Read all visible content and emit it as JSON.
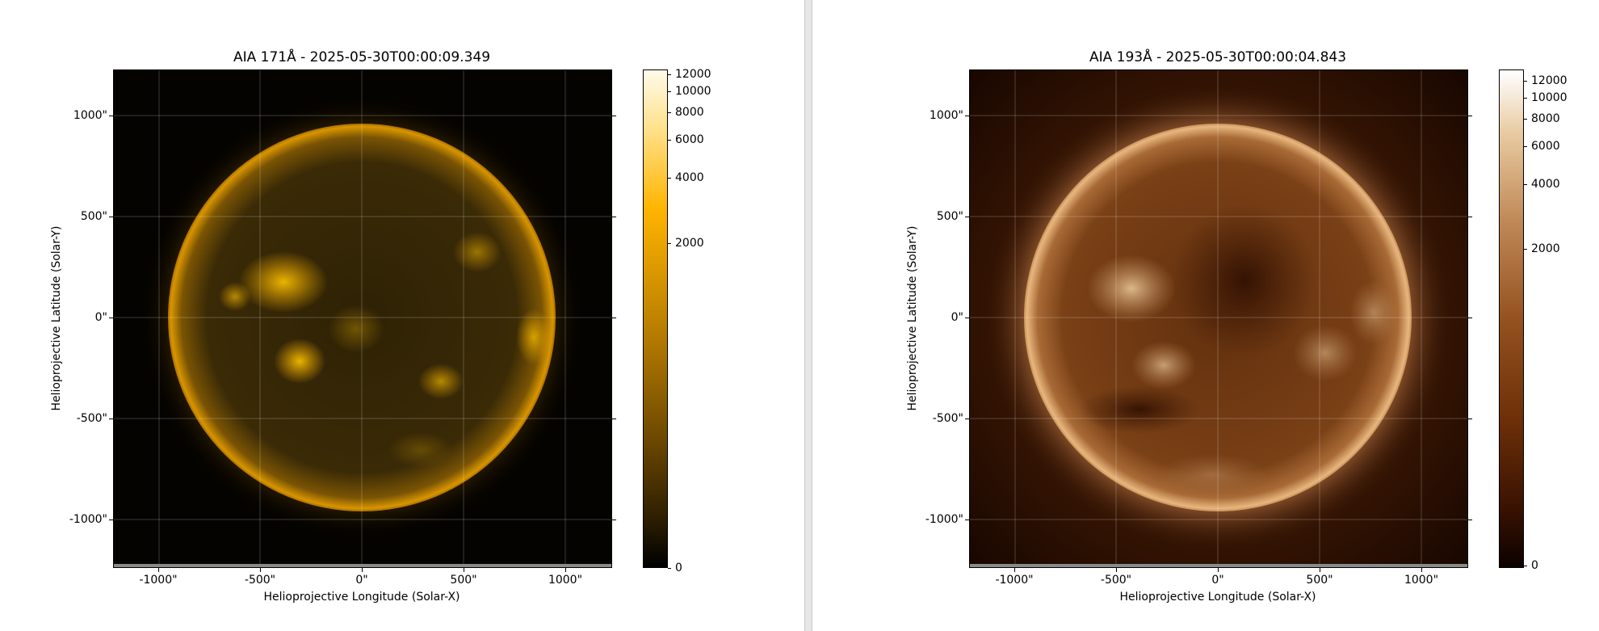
{
  "panels": [
    {
      "title": "AIA 171Å - 2025-05-30T00:00:09.349",
      "xlabel": "Helioprojective Longitude (Solar-X)",
      "ylabel": "Helioprojective Latitude (Solar-Y)",
      "xticks": [
        "-1000\"",
        "-500\"",
        "0\"",
        "500\"",
        "1000\""
      ],
      "yticks": [
        "1000\"",
        "500\"",
        "0\"",
        "-500\"",
        "-1000\""
      ],
      "colorbar_ticks": [
        "12000",
        "10000",
        "8000",
        "6000",
        "4000",
        "2000",
        "0"
      ],
      "colors": {
        "background": "#050300",
        "disk": "#3a2a05",
        "limb": "#d99400",
        "bright": "#ffb800",
        "cbar_top": "#fffbea",
        "cbar_mid": "#ffb400",
        "cbar_bottom": "#000000"
      }
    },
    {
      "title": "AIA 193Å - 2025-05-30T00:00:04.843",
      "xlabel": "Helioprojective Longitude (Solar-X)",
      "ylabel": "Helioprojective Latitude (Solar-Y)",
      "xticks": [
        "-1000\"",
        "-500\"",
        "0\"",
        "500\"",
        "1000\""
      ],
      "yticks": [
        "1000\"",
        "500\"",
        "0\"",
        "-500\"",
        "-1000\""
      ],
      "colorbar_ticks": [
        "12000",
        "10000",
        "8000",
        "6000",
        "4000",
        "2000",
        "0"
      ],
      "colors": {
        "background": "#1a0800",
        "disk": "#6a3410",
        "limb": "#e2b07a",
        "bright": "#f0cfa0",
        "cbar_top": "#ffffff",
        "cbar_mid": "#8a4a18",
        "cbar_bottom": "#0c0200"
      }
    }
  ]
}
